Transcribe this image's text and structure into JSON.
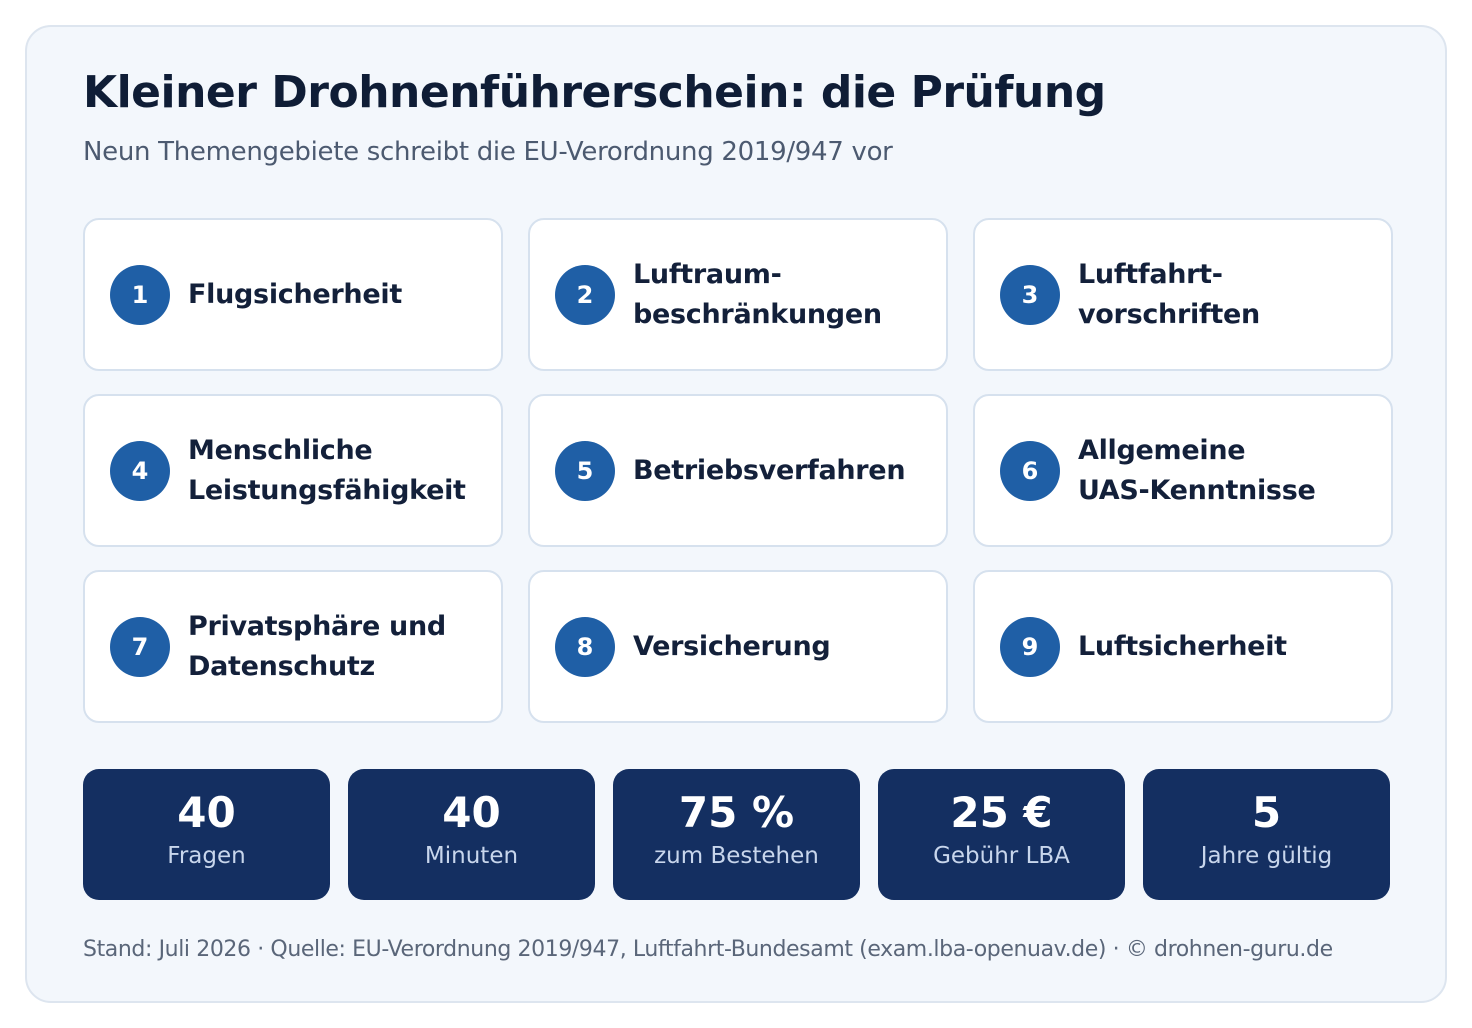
{
  "header": {
    "title": "Kleiner Drohnenführerschein: die Prüfung",
    "subtitle": "Neun Themengebiete schreibt die EU-Verordnung 2019/947 vor"
  },
  "topics": [
    {
      "number": "1",
      "lines": [
        "Flugsicherheit"
      ]
    },
    {
      "number": "2",
      "lines": [
        "Luftraum-",
        "beschränkungen"
      ]
    },
    {
      "number": "3",
      "lines": [
        "Luftfahrt-",
        "vorschriften"
      ]
    },
    {
      "number": "4",
      "lines": [
        "Menschliche",
        "Leistungsfähigkeit"
      ]
    },
    {
      "number": "5",
      "lines": [
        "Betriebsverfahren"
      ]
    },
    {
      "number": "6",
      "lines": [
        "Allgemeine",
        "UAS-Kenntnisse"
      ]
    },
    {
      "number": "7",
      "lines": [
        "Privatsphäre und",
        "Datenschutz"
      ]
    },
    {
      "number": "8",
      "lines": [
        "Versicherung"
      ]
    },
    {
      "number": "9",
      "lines": [
        "Luftsicherheit"
      ]
    }
  ],
  "stats": [
    {
      "value": "40",
      "label": "Fragen"
    },
    {
      "value": "40",
      "label": "Minuten"
    },
    {
      "value": "75 %",
      "label": "zum Bestehen"
    },
    {
      "value": "25 €",
      "label": "Gebühr LBA"
    },
    {
      "value": "5",
      "label": "Jahre gültig"
    }
  ],
  "footer": {
    "text": "Stand: Juli 2026 · Quelle: EU-Verordnung 2019/947, Luftfahrt-Bundesamt (exam.lba-openuav.de) · © drohnen-guru.de"
  },
  "colors": {
    "accent_circle": "#1f5fa6",
    "stat_background": "#142f61",
    "card_background": "#f3f7fc"
  }
}
